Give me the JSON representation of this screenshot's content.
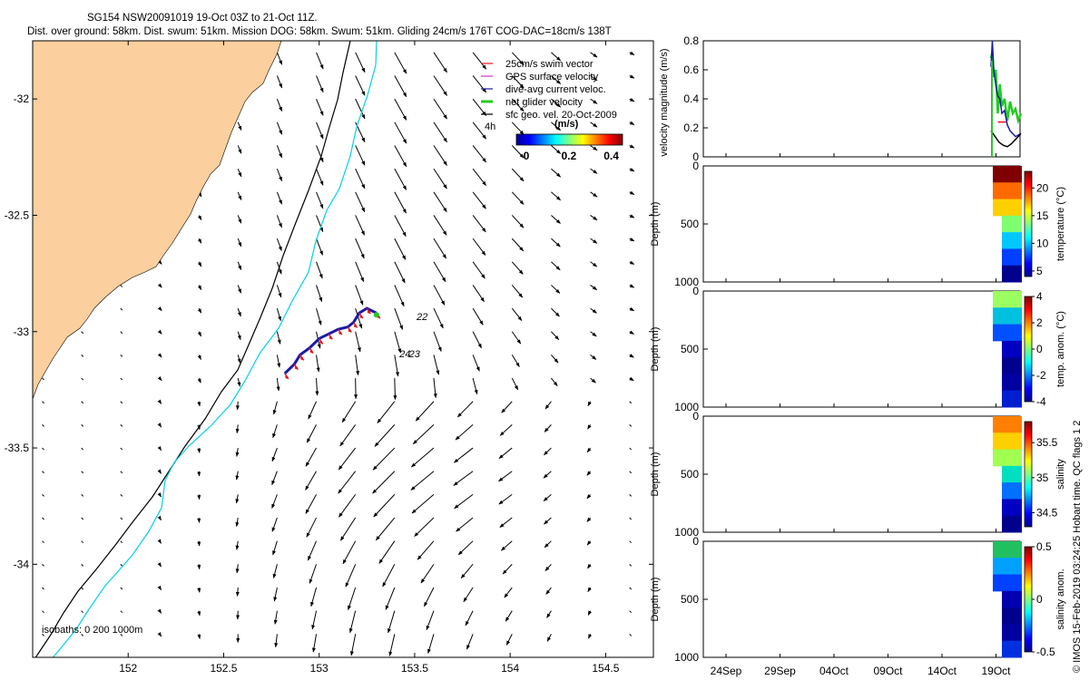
{
  "header": {
    "title_line1": "SG154 NSW20091019 19-Oct 03Z to 21-Oct 11Z.",
    "title_line2": "Dist. over ground: 58km. Dist. swum: 51km. Mission DOG: 58km. Swum: 51km. Gliding 24cm/s 176T COG-DAC=18cm/s 138T"
  },
  "credit": "© IMOS 15-Feb-2019 03:24:25 Hobart time. QC flags 1  2",
  "colors": {
    "land": "#fbcf9e",
    "isobath_200": "#000000",
    "isobath_1000": "#00d2e8",
    "swim": "#e8141e",
    "gps": "#cc33cc",
    "dac": "#1a1aa8",
    "net": "#22cc22",
    "geo": "#000000"
  },
  "chart_data": [
    {
      "type": "map",
      "name": "map",
      "xlim": [
        151.5,
        154.75
      ],
      "ylim": [
        -34.4,
        -31.75
      ],
      "xticks": [
        "152",
        "152.5",
        "153",
        "153.5",
        "154",
        "154.5"
      ],
      "yticks": [
        "-32",
        "-32.5",
        "-33",
        "-33.5",
        "-34"
      ],
      "legend": {
        "placement": "top-right",
        "items": [
          {
            "label": "25cm/s swim vector",
            "color": "swim"
          },
          {
            "label": "GPS surface velocity",
            "color": "gps"
          },
          {
            "label": "dive-avg current veloc.",
            "color": "dac"
          },
          {
            "label": "net glider velocity",
            "color": "net"
          },
          {
            "label": "sfc geo. vel. 20-Oct-2009",
            "color": "geo"
          }
        ]
      },
      "colorbar": {
        "label": "(m/s)",
        "ticks": [
          "0",
          "0.2",
          "0.4"
        ],
        "range": [
          0,
          0.5
        ]
      },
      "scale_label": "4h",
      "isobath_label": "isobaths: 0   200   1000m",
      "day_labels": [
        {
          "text": "22",
          "lon": 153.51,
          "lat": -32.95
        },
        {
          "text": "24",
          "lon": 153.42,
          "lat": -33.11
        },
        {
          "text": "23",
          "lon": 153.47,
          "lat": -33.11
        }
      ],
      "track": [
        [
          152.82,
          -33.18
        ],
        [
          152.87,
          -33.14
        ],
        [
          152.9,
          -33.1
        ],
        [
          152.95,
          -33.07
        ],
        [
          153.0,
          -33.03
        ],
        [
          153.05,
          -33.01
        ],
        [
          153.1,
          -32.99
        ],
        [
          153.15,
          -32.98
        ],
        [
          153.18,
          -32.96
        ],
        [
          153.21,
          -32.92
        ],
        [
          153.25,
          -32.9
        ],
        [
          153.3,
          -32.92
        ]
      ]
    },
    {
      "type": "line",
      "name": "velocity",
      "ylabel": "velocity magnitude (m/s)",
      "ylim": [
        0,
        0.8
      ],
      "yticks": [
        "0",
        "0.2",
        "0.4",
        "0.6",
        "0.8"
      ],
      "xticks": [
        "24Sep",
        "29Sep",
        "04Oct",
        "09Oct",
        "14Oct",
        "19Oct"
      ],
      "series": [
        {
          "color": "net",
          "x": [
            0.0,
            0.1,
            0.2,
            0.35,
            0.5,
            0.65,
            0.8,
            1.0,
            1.2,
            1.4,
            1.6,
            1.8,
            2.0,
            2.2
          ],
          "y": [
            0.68,
            0.72,
            0.55,
            0.6,
            0.3,
            0.5,
            0.35,
            0.4,
            0.25,
            0.38,
            0.3,
            0.33,
            0.25,
            0.3
          ]
        },
        {
          "color": "dac",
          "x": [
            0.0,
            0.1,
            0.2,
            0.35,
            0.5,
            0.65,
            0.8,
            1.0,
            1.2,
            1.4,
            1.6,
            1.8,
            2.0,
            2.2
          ],
          "y": [
            0.62,
            0.8,
            0.6,
            0.5,
            0.42,
            0.4,
            0.3,
            0.32,
            0.22,
            0.18,
            0.16,
            0.14,
            0.15,
            0.16
          ]
        },
        {
          "color": "geo",
          "x": [
            0.0,
            0.3,
            0.6,
            0.9,
            1.2,
            1.5,
            1.8,
            2.0,
            2.2
          ],
          "y": [
            0.18,
            0.14,
            0.1,
            0.08,
            0.07,
            0.09,
            0.12,
            0.14,
            0.16
          ]
        },
        {
          "color": "swim",
          "x": [
            0.5,
            0.7,
            0.9,
            1.1
          ],
          "y": [
            0.24,
            0.24,
            0.24,
            0.24
          ]
        }
      ]
    },
    {
      "type": "heatmap",
      "name": "temperature",
      "ylabel": "Depth (m)",
      "clabel": "temperature (°C)",
      "yticks": [
        "0",
        "500",
        "1000"
      ],
      "ylim": [
        0,
        1000
      ],
      "cticks": [
        "5",
        "10",
        "15",
        "20"
      ],
      "crange": [
        4,
        23
      ]
    },
    {
      "type": "heatmap",
      "name": "temp-anom",
      "ylabel": "Depth (m)",
      "clabel": "temp. anom. (°C)",
      "yticks": [
        "0",
        "500",
        "1000"
      ],
      "ylim": [
        0,
        1000
      ],
      "cticks": [
        "-4",
        "-2",
        "0",
        "2",
        "4"
      ],
      "crange": [
        -4,
        4
      ]
    },
    {
      "type": "heatmap",
      "name": "salinity",
      "ylabel": "Depth (m)",
      "clabel": "salinity",
      "yticks": [
        "0",
        "500",
        "1000"
      ],
      "ylim": [
        0,
        1000
      ],
      "cticks": [
        "34.5",
        "35",
        "35.5"
      ],
      "crange": [
        34.3,
        35.8
      ]
    },
    {
      "type": "heatmap",
      "name": "salinity-anom",
      "ylabel": "Depth (m)",
      "clabel": "salinity anom.",
      "yticks": [
        "0",
        "500",
        "1000"
      ],
      "ylim": [
        0,
        1000
      ],
      "cticks": [
        "-0.5",
        "0",
        "0.5"
      ],
      "crange": [
        -0.5,
        0.5
      ]
    }
  ]
}
